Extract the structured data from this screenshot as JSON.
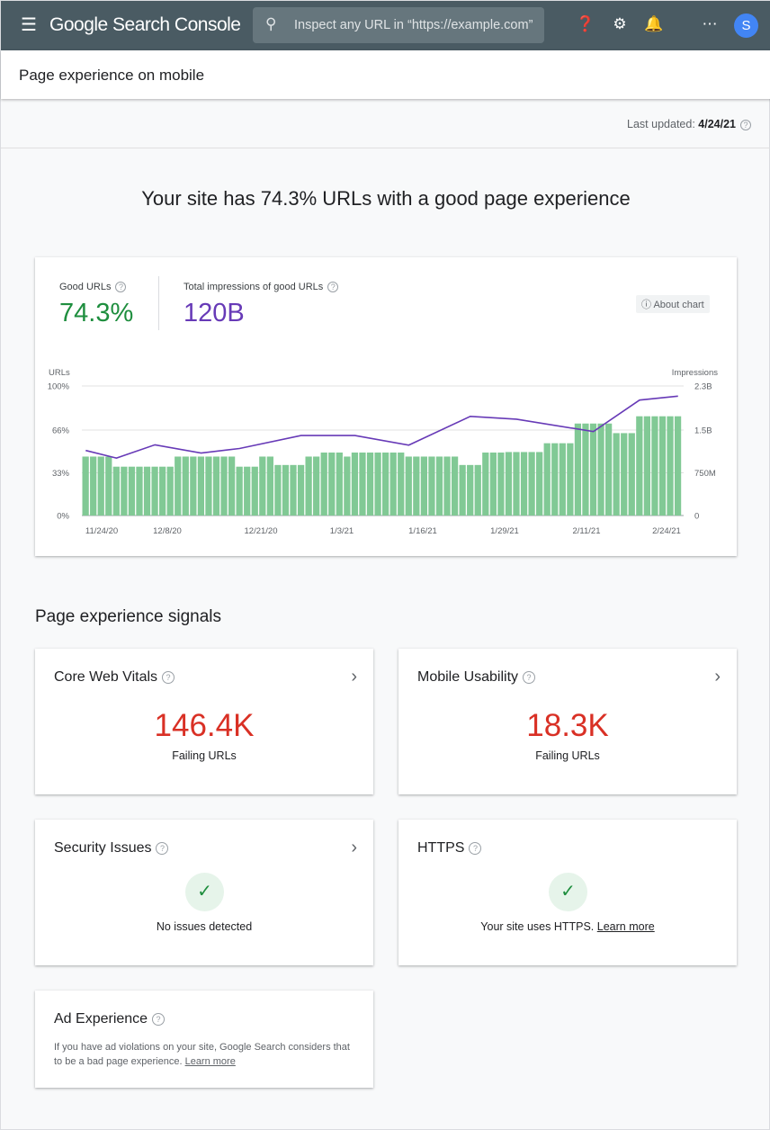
{
  "header": {
    "app_title": "Google Search Console",
    "search_placeholder": "Inspect any URL in “https://example.com”",
    "avatar_letter": "S",
    "icons": [
      "menu-icon",
      "search-icon",
      "help-icon",
      "manage-users-icon",
      "notifications-icon",
      "apps-icon"
    ]
  },
  "page_title": "Page experience on mobile",
  "last_updated": {
    "label": "Last updated:",
    "value": "4/24/21"
  },
  "headline": "Your site has 74.3% URLs with a good page experience",
  "summary": {
    "good_urls_label": "Good URLs",
    "good_urls_value": "74.3%",
    "impressions_label": "Total impressions of good URLs",
    "impressions_value": "120B",
    "about_chart": "About chart"
  },
  "colors": {
    "header": "#4a5b63",
    "good": "#1e8e3e",
    "impressions": "#673ab7",
    "bars": "#81c995",
    "failing": "#d93025",
    "avatar": "#4285f4"
  },
  "chart_data": {
    "type": "bar+line",
    "ylabel": "URLs",
    "y2label": "Impressions",
    "yticks": [
      "0%",
      "33%",
      "66%",
      "100%"
    ],
    "ylim": [
      0,
      100
    ],
    "y2ticks": [
      "0",
      "750M",
      "1.5B",
      "2.3B"
    ],
    "y2lim": [
      0,
      2.3
    ],
    "xticks": [
      "11/24/20",
      "12/8/20",
      "12/21/20",
      "1/3/21",
      "1/16/21",
      "1/29/21",
      "2/11/21",
      "2/24/21"
    ],
    "grid": true,
    "bars_good_urls_pct": [
      45.5,
      45.5,
      45.5,
      45.5,
      37.7,
      37.7,
      37.7,
      37.7,
      37.7,
      37.7,
      37.7,
      37.7,
      45.5,
      45.5,
      45.5,
      45.5,
      45.5,
      45.5,
      45.5,
      45.5,
      37.7,
      37.7,
      37.7,
      45.5,
      45.5,
      39,
      39,
      39,
      39,
      45.5,
      45.5,
      48.6,
      48.6,
      48.6,
      45.5,
      48.6,
      48.6,
      48.6,
      48.6,
      48.6,
      48.6,
      48.6,
      45.5,
      45.5,
      45.5,
      45.5,
      45.5,
      45.5,
      45.5,
      39,
      39,
      39,
      48.6,
      48.6,
      48.6,
      49,
      49,
      49,
      49,
      49,
      55.8,
      55.8,
      55.8,
      55.8,
      71,
      71,
      71,
      71,
      71,
      63.6,
      63.6,
      63.6,
      76.6,
      76.6,
      76.6,
      76.6,
      76.6,
      76.6
    ],
    "line_impressions_billions": [
      [
        0,
        1.155
      ],
      [
        4,
        1.02
      ],
      [
        9,
        1.255
      ],
      [
        15,
        1.11
      ],
      [
        20,
        1.19
      ],
      [
        28,
        1.42
      ],
      [
        35,
        1.42
      ],
      [
        42,
        1.25
      ],
      [
        50,
        1.76
      ],
      [
        56,
        1.71
      ],
      [
        66,
        1.49
      ],
      [
        72,
        2.05
      ],
      [
        77,
        2.12
      ]
    ]
  },
  "signals_title": "Page experience signals",
  "cards": {
    "cwv": {
      "title": "Core Web Vitals",
      "value": "146.4K",
      "sub": "Failing URLs"
    },
    "mu": {
      "title": "Mobile Usability",
      "value": "18.3K",
      "sub": "Failing URLs"
    },
    "sec": {
      "title": "Security Issues",
      "text": "No issues detected"
    },
    "https": {
      "title": "HTTPS",
      "text": "Your site uses HTTPS.",
      "link": "Learn more"
    },
    "ad": {
      "title": "Ad Experience",
      "text": "If you have ad violations on your site, Google Search considers that to be a bad page experience.",
      "link": "Learn more"
    }
  }
}
